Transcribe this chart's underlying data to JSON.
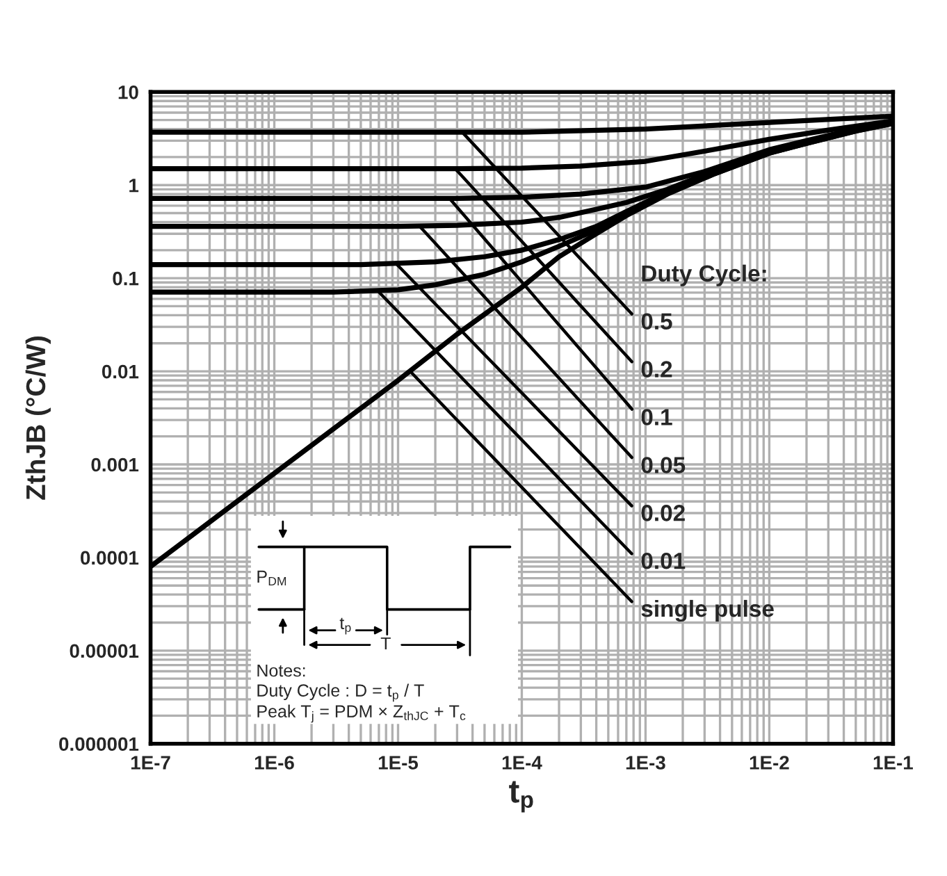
{
  "chart_data": {
    "type": "line",
    "xlabel": "t$_{p}$",
    "ylabel": "ZthJB (°C/W)",
    "log": "xy",
    "grid": true,
    "marker": "none",
    "line_style": "solid",
    "xlim": [
      1e-07,
      0.1
    ],
    "ylim": [
      1e-06,
      10
    ],
    "xticks": [
      {
        "value": 1e-07,
        "label": "1E-7"
      },
      {
        "value": 1e-06,
        "label": "1E-6"
      },
      {
        "value": 1e-05,
        "label": "1E-5"
      },
      {
        "value": 0.0001,
        "label": "1E-4"
      },
      {
        "value": 0.001,
        "label": "1E-3"
      },
      {
        "value": 0.01,
        "label": "1E-2"
      },
      {
        "value": 0.1,
        "label": "1E-1"
      }
    ],
    "yticks": [
      {
        "value": 1e-06,
        "label": "0.000001"
      },
      {
        "value": 1e-05,
        "label": "0.00001"
      },
      {
        "value": 0.0001,
        "label": "0.0001"
      },
      {
        "value": 0.001,
        "label": "0.001"
      },
      {
        "value": 0.01,
        "label": "0.01"
      },
      {
        "value": 0.1,
        "label": "0.1"
      },
      1,
      10
    ],
    "series": [
      {
        "color": "#000000",
        "x": [
          1e-07,
          1e-06,
          1e-05,
          3e-05,
          0.0001,
          0.0002,
          0.0004,
          0.0007,
          0.0015,
          0.0035,
          0.01,
          0.02,
          0.05,
          0.1
        ],
        "values": [
          8e-05,
          0.0008,
          0.008,
          0.025,
          0.08,
          0.17,
          0.3,
          0.47,
          0.8,
          1.3,
          2.2,
          2.8,
          3.8,
          4.6
        ]
      },
      {
        "color": "#000000",
        "x": [
          1e-07,
          3e-06,
          1e-05,
          2e-05,
          5e-05,
          0.0001,
          0.0002,
          0.0004,
          0.0007,
          0.0015,
          0.0035,
          0.01,
          0.02,
          0.05,
          0.1
        ],
        "values": [
          0.071,
          0.071,
          0.075,
          0.085,
          0.11,
          0.15,
          0.22,
          0.33,
          0.5,
          0.82,
          1.3,
          2.2,
          2.8,
          3.8,
          4.6
        ]
      },
      {
        "color": "#000000",
        "x": [
          1e-07,
          5e-06,
          2e-05,
          5e-05,
          0.0001,
          0.0002,
          0.0004,
          0.0007,
          0.0015,
          0.0035,
          0.01,
          0.02,
          0.05,
          0.1
        ],
        "values": [
          0.14,
          0.14,
          0.15,
          0.17,
          0.2,
          0.26,
          0.36,
          0.52,
          0.85,
          1.35,
          2.3,
          2.9,
          3.9,
          4.7
        ]
      },
      {
        "color": "#000000",
        "x": [
          1e-07,
          1e-05,
          3e-05,
          0.0001,
          0.0002,
          0.0004,
          0.0007,
          0.0015,
          0.0035,
          0.01,
          0.02,
          0.05,
          0.1
        ],
        "values": [
          0.36,
          0.36,
          0.37,
          0.4,
          0.45,
          0.55,
          0.65,
          0.9,
          1.4,
          2.3,
          2.9,
          3.9,
          4.7
        ]
      },
      {
        "color": "#000000",
        "x": [
          1e-07,
          3e-05,
          0.0001,
          0.0003,
          0.001,
          0.003,
          0.01,
          0.02,
          0.05,
          0.1
        ],
        "values": [
          0.72,
          0.72,
          0.74,
          0.8,
          0.95,
          1.4,
          2.4,
          3.0,
          4.0,
          4.8
        ]
      },
      {
        "color": "#000000",
        "x": [
          1e-07,
          3e-05,
          0.0001,
          0.0003,
          0.001,
          0.0035,
          0.01,
          0.03,
          0.1
        ],
        "values": [
          1.5,
          1.5,
          1.52,
          1.6,
          1.8,
          2.4,
          3.1,
          3.9,
          4.9
        ]
      },
      {
        "color": "#000000",
        "x": [
          1e-07,
          0.0001,
          0.001,
          0.01,
          0.1
        ],
        "values": [
          3.7,
          3.7,
          4.0,
          4.7,
          5.5
        ]
      }
    ],
    "annotations": [
      "Duty Cycle:",
      "P$_{DM}$",
      "t$_{p}$",
      "T",
      "Notes:",
      "Duty Cycle : D = t$_{p}$ / T",
      "Peak T$_{j}$ = PDM × Z$_{thJC}$ + T$_{c}$",
      {
        "text": "0.5",
        "x": 3.3e-05,
        "y": 3.7
      },
      {
        "text": "0.2",
        "x": 2.9e-05,
        "y": 1.5
      },
      {
        "text": "0.1",
        "x": 2.6e-05,
        "y": 0.72
      },
      {
        "text": "0.05",
        "x": 1.5e-05,
        "y": 0.36
      },
      {
        "text": "0.02",
        "x": 9.8e-06,
        "y": 0.14
      },
      {
        "text": "0.01",
        "x": 7e-06,
        "y": 0.071
      },
      {
        "text": "single pulse",
        "x": 1.3e-05,
        "y": 0.0095
      }
    ]
  }
}
